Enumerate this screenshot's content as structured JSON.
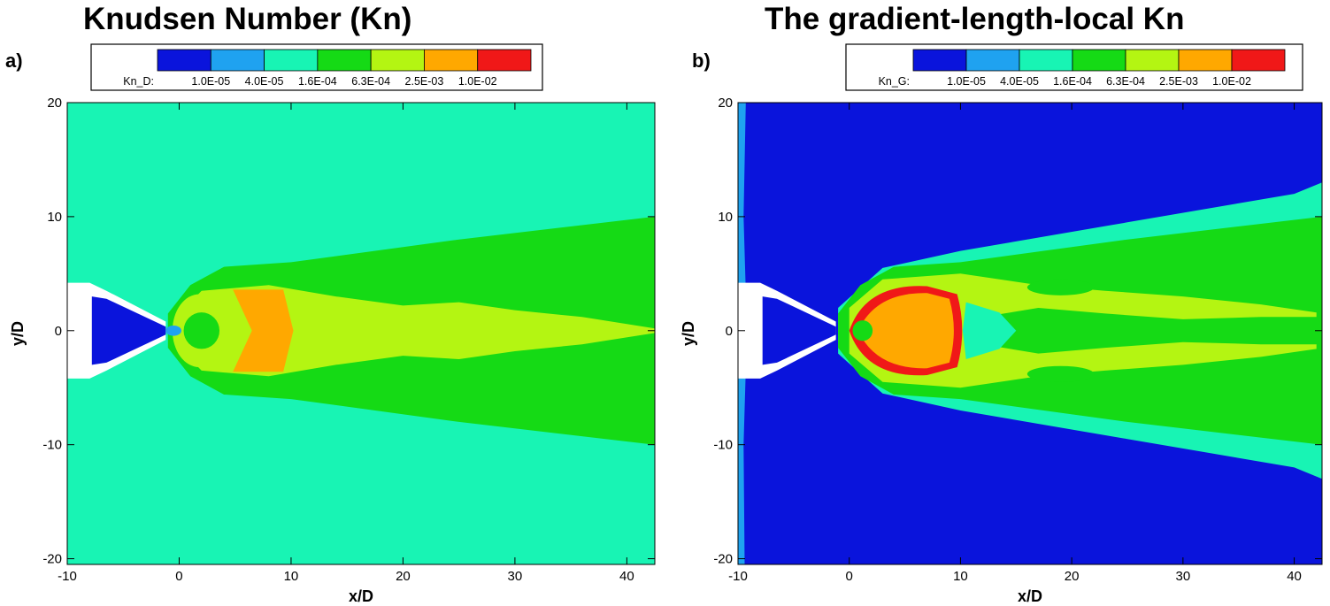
{
  "chart_data": [
    {
      "type": "heatmap",
      "panel_label": "a)",
      "title": "Knudsen Number (Kn)",
      "xlabel": "x/D",
      "ylabel": "y/D",
      "xlim": [
        -10,
        42.5
      ],
      "ylim": [
        -20.5,
        20
      ],
      "xticks": [
        -10,
        0,
        10,
        20,
        30,
        40
      ],
      "yticks": [
        -20,
        -10,
        0,
        10,
        20
      ],
      "legend": {
        "variable": "Kn_D:",
        "labels": [
          "1.0E-05",
          "4.0E-05",
          "1.6E-04",
          "6.3E-04",
          "2.5E-03",
          "1.0E-02"
        ],
        "colors": [
          "#0a14dc",
          "#1fa2f0",
          "#18f4b4",
          "#15da15",
          "#b4f512",
          "#ffa800",
          "#f01818"
        ],
        "placement": "top"
      },
      "regions": {
        "background": "#18f4b4",
        "nozzle_interior": "#0a14dc",
        "throat": "#1fa2f0",
        "jet_outer": "#15da15",
        "jet_core": "#b4f512",
        "shock_band": "#ffa800"
      }
    },
    {
      "type": "heatmap",
      "panel_label": "b)",
      "title": "The gradient-length-local Kn",
      "xlabel": "x/D",
      "ylabel": "y/D",
      "xlim": [
        -10,
        42.5
      ],
      "ylim": [
        -20.5,
        20
      ],
      "xticks": [
        -10,
        0,
        10,
        20,
        30,
        40
      ],
      "yticks": [
        -20,
        -10,
        0,
        10,
        20
      ],
      "legend": {
        "variable": "Kn_G:",
        "labels": [
          "1.0E-05",
          "4.0E-05",
          "1.6E-04",
          "6.3E-04",
          "2.5E-03",
          "1.0E-02"
        ],
        "colors": [
          "#0a14dc",
          "#1fa2f0",
          "#18f4b4",
          "#15da15",
          "#b4f512",
          "#ffa800",
          "#f01818"
        ],
        "placement": "top"
      },
      "regions": {
        "background": "#0a14dc",
        "boundary": "#1fa2f0",
        "jet_edge": "#18f4b4",
        "jet_outer": "#15da15",
        "jet_core": "#b4f512",
        "shock_cell": "#ffa800",
        "shock_front": "#f01818"
      }
    }
  ]
}
